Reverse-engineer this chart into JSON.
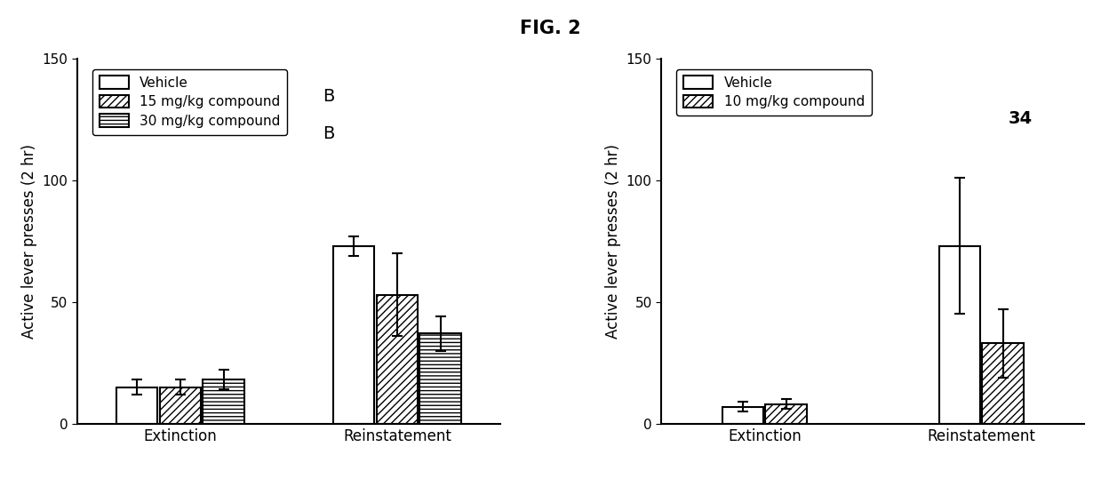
{
  "title": "FIG. 2",
  "left": {
    "ylabel": "Active lever presses (2 hr)",
    "categories": [
      "Extinction",
      "Reinstatement"
    ],
    "series": [
      {
        "label": "Vehicle",
        "hatch": "",
        "values": [
          15,
          73
        ],
        "errors": [
          3,
          4
        ]
      },
      {
        "label": "15 mg/kg compound",
        "label_suffix": "B",
        "hatch": "////",
        "values": [
          15,
          53
        ],
        "errors": [
          3,
          17
        ]
      },
      {
        "label": "30 mg/kg compound",
        "label_suffix": "B",
        "hatch": "----",
        "values": [
          18,
          37
        ],
        "errors": [
          4,
          7
        ]
      }
    ],
    "ylim": [
      0,
      150
    ],
    "yticks": [
      0,
      50,
      100,
      150
    ]
  },
  "right": {
    "ylabel": "Active lever presses (2 hr)",
    "categories": [
      "Extinction",
      "Reinstatement"
    ],
    "series": [
      {
        "label": "Vehicle",
        "hatch": "",
        "values": [
          7,
          73
        ],
        "errors": [
          2,
          28
        ]
      },
      {
        "label": "10 mg/kg compound",
        "label_suffix": "34",
        "hatch": "////",
        "values": [
          8,
          33
        ],
        "errors": [
          2,
          14
        ]
      }
    ],
    "ylim": [
      0,
      150
    ],
    "yticks": [
      0,
      50,
      100,
      150
    ]
  },
  "bar_width": 0.2,
  "bar_edgecolor": "#000000",
  "bar_facecolor": "#ffffff",
  "title_fontsize": 15,
  "label_fontsize": 12,
  "tick_fontsize": 11,
  "legend_fontsize": 11,
  "suffix_fontsize": 14
}
